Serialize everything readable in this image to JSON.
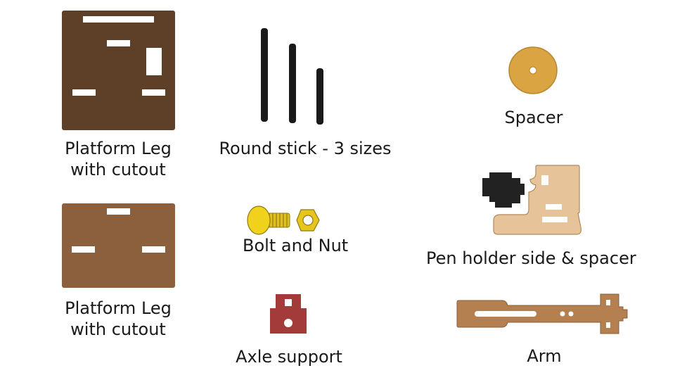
{
  "parts": {
    "platform_leg_1": {
      "label_line1": "Platform Leg",
      "label_line2": "with cutout",
      "color": "#5e3f28"
    },
    "platform_leg_2": {
      "label_line1": "Platform Leg",
      "label_line2": "with cutout",
      "color": "#8c5f3d"
    },
    "round_stick": {
      "label": "Round stick - 3 sizes",
      "color": "#1a1a1a"
    },
    "spacer": {
      "label": "Spacer",
      "color": "#d9a441"
    },
    "bolt_and_nut": {
      "label": "Bolt and Nut",
      "color": "#e6c51c"
    },
    "pen_holder": {
      "label": "Pen holder side & spacer",
      "side_color": "#e7c39a",
      "spacer_color": "#222222"
    },
    "axle_support": {
      "label": "Axle support",
      "color": "#a33b3b"
    },
    "arm": {
      "label": "Arm",
      "color": "#b5804f"
    }
  }
}
